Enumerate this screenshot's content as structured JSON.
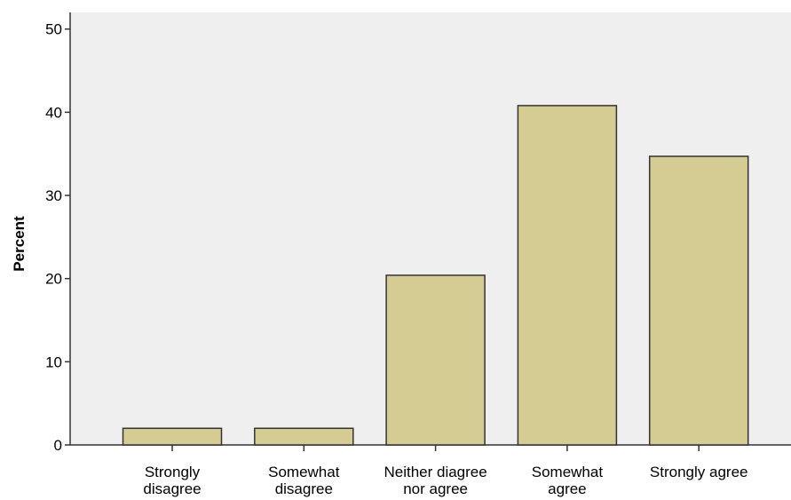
{
  "chart_data": {
    "type": "bar",
    "title": "",
    "xlabel": "",
    "ylabel": "Percent",
    "categories": [
      "Strongly disagree",
      "Somewhat disagree",
      "Neither diagree nor agree",
      "Somewhat agree",
      "Strongly agree"
    ],
    "category_label_lines": [
      [
        "Strongly",
        "disagree"
      ],
      [
        "Somewhat",
        "disagree"
      ],
      [
        "Neither diagree",
        "nor agree"
      ],
      [
        "Somewhat",
        "agree"
      ],
      [
        "Strongly agree"
      ]
    ],
    "values": [
      2.0,
      2.0,
      20.4,
      40.8,
      34.7
    ],
    "ylim": [
      0,
      52
    ],
    "yticks": [
      0,
      10,
      20,
      30,
      40,
      50
    ],
    "grid": false,
    "legend": "none",
    "colors": {
      "bar_fill": "#d4cc93",
      "bar_stroke": "#333333",
      "plot_background": "#efefef",
      "axis": "#333333"
    }
  }
}
